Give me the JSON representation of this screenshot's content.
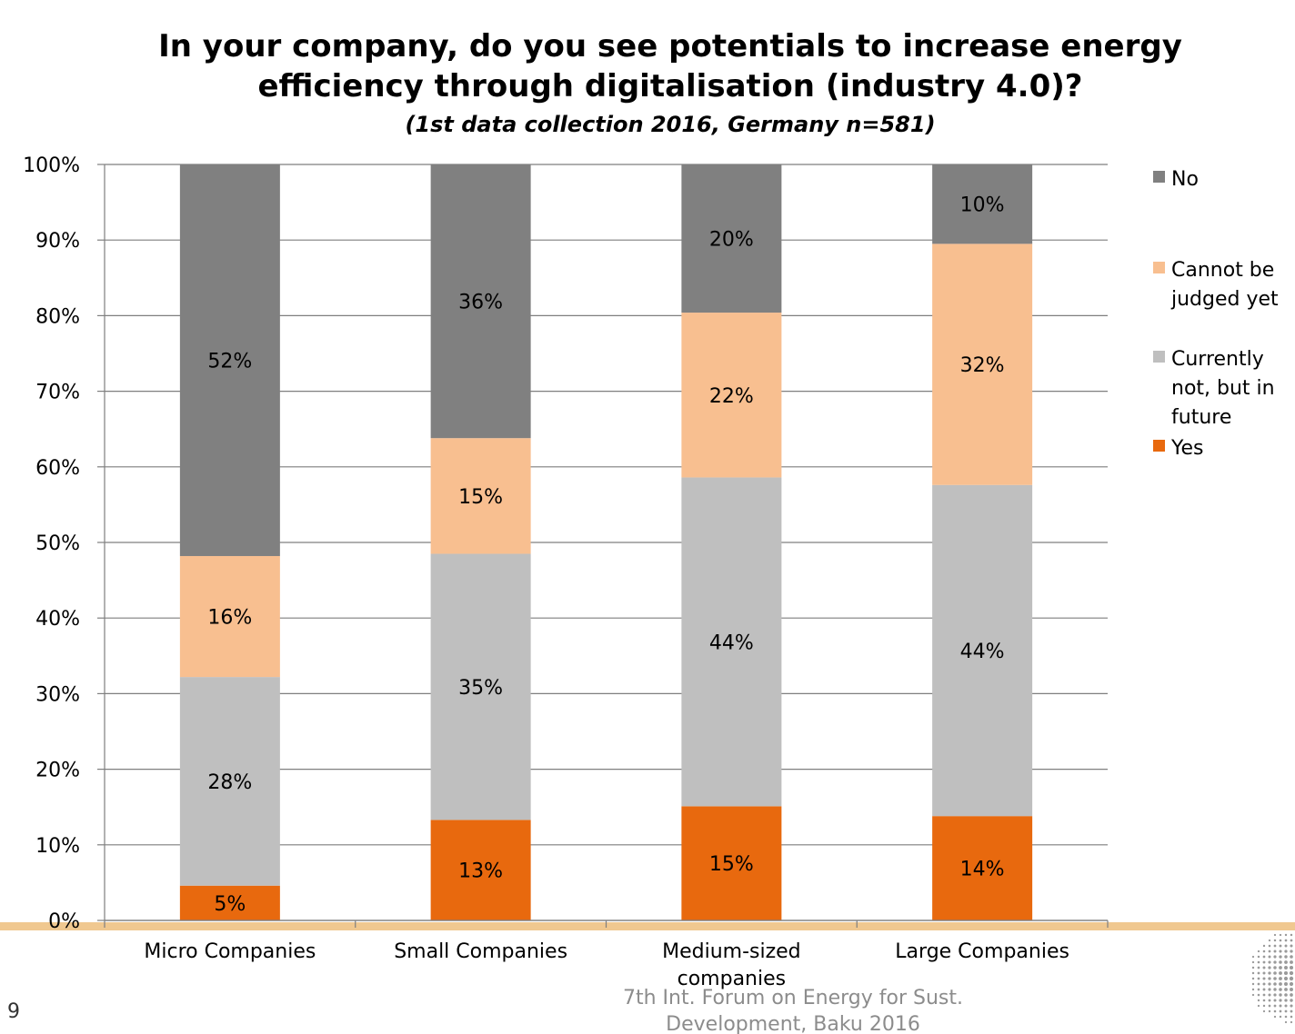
{
  "chart_data": {
    "type": "bar",
    "stacked": true,
    "percent_axis": true,
    "title": [
      "In your company, do you see potentials to increase energy",
      "efficiency through digitalisation (industry 4.0)?"
    ],
    "subtitle": "(1st data collection 2016, Germany n=581)",
    "categories": [
      "Micro Companies",
      "Small Companies",
      "Medium-sized companies",
      "Large Companies"
    ],
    "category_lines": [
      [
        "Micro Companies"
      ],
      [
        "Small Companies"
      ],
      [
        "Medium-sized",
        "companies"
      ],
      [
        "Large Companies"
      ]
    ],
    "ylim": [
      0,
      100
    ],
    "yticks": [
      0,
      10,
      20,
      30,
      40,
      50,
      60,
      70,
      80,
      90,
      100
    ],
    "ytick_labels": [
      "0%",
      "10%",
      "20%",
      "30%",
      "40%",
      "50%",
      "60%",
      "70%",
      "80%",
      "90%",
      "100%"
    ],
    "grid": true,
    "legend_position": "right",
    "series": [
      {
        "name": "Yes",
        "values": [
          4.6,
          13.3,
          15.1,
          13.8
        ],
        "labels": [
          "5%",
          "13%",
          "15%",
          "14%"
        ],
        "color": "#e8690e"
      },
      {
        "name": "Currently not, but in future",
        "legend_lines": [
          "Currently",
          "not, but in",
          "future"
        ],
        "values": [
          27.6,
          35.2,
          43.5,
          43.8
        ],
        "labels": [
          "28%",
          "35%",
          "44%",
          "44%"
        ],
        "color": "#bfbfbf"
      },
      {
        "name": "Cannot be judged yet",
        "legend_lines": [
          "Cannot be",
          "judged yet"
        ],
        "values": [
          16.0,
          15.3,
          21.8,
          31.9
        ],
        "labels": [
          "16%",
          "15%",
          "22%",
          "32%"
        ],
        "color": "#f8bf90"
      },
      {
        "name": "No",
        "values": [
          51.8,
          36.2,
          19.6,
          10.5
        ],
        "labels": [
          "52%",
          "36%",
          "20%",
          "10%"
        ],
        "color": "#808080"
      }
    ]
  },
  "footer": {
    "page_number": "9",
    "event_lines": [
      "7th Int. Forum on Energy for Sust.",
      "Development, Baku 2016"
    ]
  },
  "colors": {
    "accent_band": "#f0c890",
    "gridline": "#7f7f7f",
    "footer_text": "#8c8c8c"
  },
  "logo_icon": "dotted-globe-icon"
}
